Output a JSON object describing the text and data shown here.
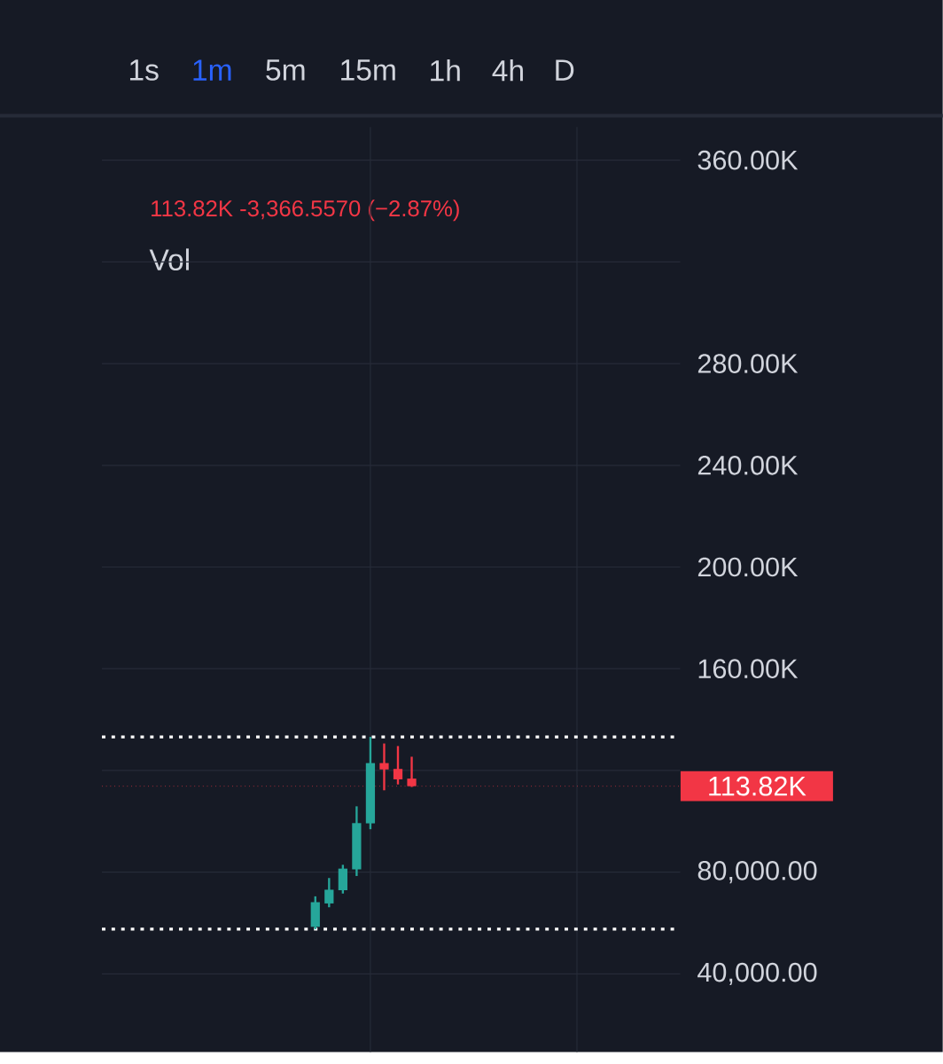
{
  "chart_data": {
    "type": "candlestick",
    "subtitle": "113.82K  -3,366.5570 (−2.87%)",
    "annotations": [
      "1s",
      "1m",
      "5m",
      "15m",
      "1h",
      "4h",
      "D",
      "Vol"
    ],
    "categories": [
      null,
      null,
      null,
      null,
      null,
      null,
      null,
      null,
      null,
      null,
      null,
      null,
      null,
      null,
      null,
      null,
      null,
      null,
      null,
      null,
      null,
      null,
      null,
      null,
      null,
      null,
      null,
      null,
      null,
      null,
      null,
      null,
      null,
      null,
      null,
      null,
      null,
      null,
      null,
      null,
      null,
      null
    ],
    "ohlc": [
      null,
      null,
      null,
      null,
      null,
      null,
      null,
      null,
      null,
      null,
      null,
      null,
      null,
      null,
      null,
      [
        58500,
        70500,
        57600,
        68200
      ],
      [
        67700,
        77700,
        66200,
        73100
      ],
      [
        72900,
        82900,
        71600,
        81400
      ],
      [
        81100,
        105900,
        78500,
        99300
      ],
      [
        99200,
        133200,
        96900,
        122900
      ],
      [
        122900,
        130600,
        112200,
        120400
      ],
      [
        120600,
        129600,
        114500,
        116500
      ],
      [
        116800,
        125400,
        113500,
        113820
      ],
      null,
      null,
      null,
      null,
      null,
      null,
      null,
      null,
      null,
      null,
      null,
      null,
      null,
      null,
      null,
      null,
      null,
      null,
      null
    ],
    "ylim": [
      9300,
      373000
    ],
    "yticks": [
      {
        "value": 40000,
        "label": "40,000.00"
      },
      {
        "value": 80000,
        "label": "80,000.00"
      },
      {
        "value": 120000,
        "label": null
      },
      {
        "value": 160000,
        "label": "160.00K"
      },
      {
        "value": 200000,
        "label": "200.00K"
      },
      {
        "value": 240000,
        "label": "240.00K"
      },
      {
        "value": 280000,
        "label": "280.00K"
      },
      {
        "value": 320000,
        "label": null
      },
      {
        "value": 360000,
        "label": "360.00K"
      }
    ],
    "ref_lines": [
      {
        "axis": "y",
        "value": 133200,
        "color": "#ffffff",
        "line_style": "dotted"
      },
      {
        "axis": "y",
        "value": 57600,
        "color": "#ffffff",
        "line_style": "dotted"
      },
      {
        "axis": "y",
        "value": 113820,
        "label": "113.82K",
        "color": "#f23645",
        "line_style": "dotted"
      }
    ],
    "colors": [
      null,
      null,
      null,
      null,
      null,
      null,
      null,
      null,
      null,
      null,
      null,
      null,
      null,
      null,
      null,
      "#26a69a",
      "#26a69a",
      "#26a69a",
      "#26a69a",
      "#26a69a",
      "#f23645",
      "#f23645",
      "#f23645",
      null,
      null,
      null,
      null,
      null,
      null,
      null,
      null,
      null,
      null,
      null,
      null,
      null,
      null,
      null,
      null,
      null,
      null,
      null
    ],
    "grid": true
  }
}
